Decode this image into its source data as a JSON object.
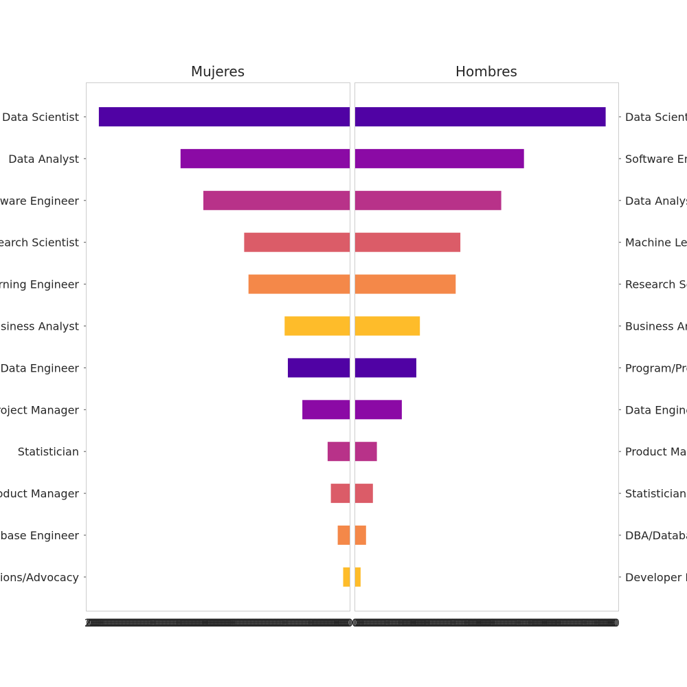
{
  "chart_data": [
    {
      "type": "bar",
      "orientation": "horizontal",
      "direction": "leftward",
      "title": "Mujeres",
      "categories": [
        "Data Scientist",
        "Data Analyst",
        "Software Engineer",
        "Research Scientist",
        "Machine Learning Engineer",
        "Business Analyst",
        "Data Engineer",
        "Program/Project Manager",
        "Statistician",
        "Product Manager",
        "DBA/Database Engineer",
        "Developer Relations/Advocacy"
      ],
      "values": [
        694,
        468,
        405,
        292,
        280,
        180,
        171,
        131,
        61,
        52,
        33,
        18
      ],
      "xlim": [
        0,
        730
      ],
      "xtick_labels": [
        "2",
        "0",
        "0",
        "0",
        "0",
        "0",
        "0",
        "0",
        "0",
        "0",
        "0",
        "0",
        "0",
        "0",
        "0",
        "0",
        "0",
        "0",
        "0",
        "0",
        "0",
        "0",
        "0",
        "0",
        "0",
        "0",
        "0",
        "0",
        "0",
        "0",
        "0",
        "0",
        "0",
        "0",
        "0",
        "0",
        "0",
        "0",
        "0",
        "0",
        "0",
        "0",
        "0",
        "0",
        "0",
        "0",
        "0",
        "0",
        "0",
        "0",
        "0",
        "0",
        "0",
        "0",
        "0",
        "0",
        "0",
        "0",
        "0",
        "0",
        "0",
        "0",
        "0",
        "0",
        "0",
        "0",
        "0",
        "0",
        "0",
        "0",
        "0",
        "0",
        "0",
        "0",
        "0",
        "0",
        "0",
        "0",
        "0",
        "0",
        "0",
        "0",
        "0",
        "0",
        "0",
        "0",
        "0",
        "0",
        "0",
        "0",
        "0",
        "0",
        "0",
        "0",
        "0",
        "0",
        "0",
        "0",
        "0",
        "0",
        "0",
        "0",
        "0",
        "0",
        "0",
        "0",
        "0",
        "0",
        "0",
        "0",
        "0",
        "0",
        "0",
        "0",
        "0",
        "0",
        "0",
        "0",
        "0",
        "0",
        "0",
        "0",
        "0",
        "0",
        "0",
        "0",
        "0",
        "0",
        "0",
        "0",
        "0",
        "0",
        "0",
        "0",
        "0",
        "0",
        "0",
        "0",
        "0",
        "0",
        "0",
        "0",
        "0",
        "0",
        "0",
        "0",
        "0",
        "0",
        "0",
        "0",
        "0",
        "0",
        "0",
        "0",
        "0",
        "0",
        "0",
        "0",
        "0",
        "0",
        "0",
        "0",
        "0",
        "0",
        "0",
        "0",
        "0",
        "0",
        "0",
        "0",
        "0",
        "0",
        "0",
        "0",
        "0",
        "0",
        "0",
        "0",
        "0",
        "0",
        "0",
        "0",
        "0",
        "0",
        "0",
        "0",
        "0",
        "0",
        "0",
        "0",
        "0",
        "0"
      ],
      "grid": false
    },
    {
      "type": "bar",
      "orientation": "horizontal",
      "direction": "rightward",
      "title": "Hombres",
      "categories": [
        "Data Scientist",
        "Software Engineer",
        "Data Analyst",
        "Machine Learning Engineer",
        "Research Scientist",
        "Business Analyst",
        "Program/Project Manager",
        "Data Engineer",
        "Product Manager",
        "Statistician",
        "DBA/Database Engineer",
        "Developer Relations/Advocacy"
      ],
      "values": [
        695,
        469,
        406,
        293,
        280,
        181,
        171,
        131,
        62,
        51,
        32,
        17
      ],
      "xlim": [
        0,
        730
      ],
      "xtick_labels": [
        "0",
        "0",
        "0",
        "0",
        "0",
        "0",
        "0",
        "0",
        "0",
        "0",
        "0",
        "0",
        "0",
        "0",
        "0",
        "0",
        "0",
        "0",
        "0",
        "0",
        "0",
        "0",
        "0",
        "0",
        "0",
        "0",
        "0",
        "0",
        "0",
        "0",
        "0",
        "0",
        "0",
        "0",
        "0",
        "0",
        "0",
        "0",
        "0",
        "0",
        "0",
        "0",
        "0",
        "0",
        "0",
        "0",
        "0",
        "0",
        "0",
        "0",
        "0",
        "0",
        "0",
        "0",
        "0",
        "0",
        "0",
        "0",
        "0",
        "0",
        "0",
        "0",
        "0",
        "0",
        "0",
        "0",
        "0",
        "0",
        "0",
        "0",
        "0",
        "0",
        "0",
        "0",
        "0",
        "0",
        "0",
        "0",
        "0",
        "0",
        "0",
        "0",
        "0",
        "0",
        "0",
        "0",
        "0",
        "0",
        "0",
        "0",
        "0",
        "0",
        "0",
        "0",
        "0",
        "0",
        "0",
        "0",
        "0",
        "0",
        "0",
        "0",
        "0",
        "0",
        "0",
        "0",
        "0",
        "0",
        "0",
        "0",
        "0",
        "0",
        "0",
        "0",
        "0",
        "0",
        "0",
        "0",
        "0",
        "0",
        "0",
        "0",
        "0",
        "0",
        "0",
        "0",
        "0",
        "0",
        "0",
        "0",
        "0",
        "0",
        "0",
        "0",
        "0",
        "0",
        "0",
        "0",
        "0",
        "0",
        "0",
        "0",
        "0",
        "0",
        "0",
        "0",
        "0",
        "0",
        "0",
        "0",
        "0",
        "0",
        "0",
        "0",
        "0",
        "0",
        "0",
        "0",
        "0",
        "0",
        "0",
        "0",
        "0",
        "0",
        "0",
        "0",
        "0",
        "0",
        "0",
        "0",
        "0",
        "0",
        "0",
        "0",
        "0",
        "0",
        "0",
        "0",
        "0",
        "0",
        "0",
        "0",
        "0",
        "0",
        "0",
        "0",
        "0",
        "0",
        "0",
        "0",
        "0",
        "0"
      ],
      "grid": false
    }
  ],
  "colors": [
    "#5002a4",
    "#8b0aa5",
    "#b83289",
    "#db5c68",
    "#f48849",
    "#febc2a"
  ]
}
